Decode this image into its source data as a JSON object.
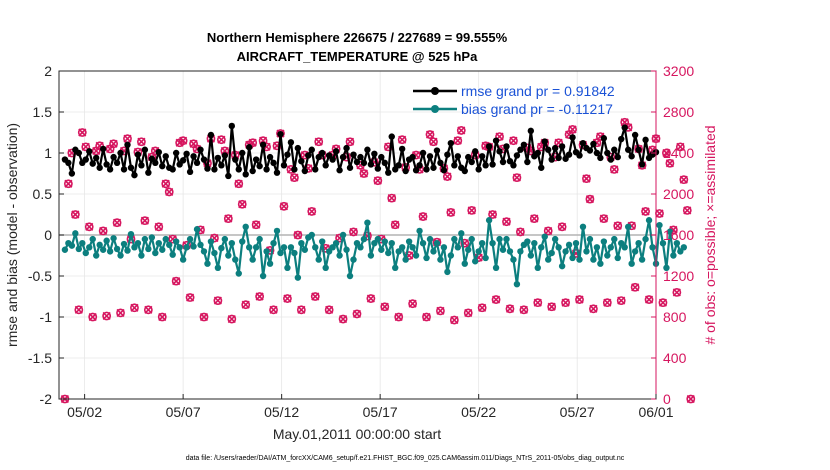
{
  "chart_data": {
    "type": "line",
    "title_lines": [
      "Northern Hemisphere 226675 / 227689 = 99.555%",
      "AIRCRAFT_TEMPERATURE @ 525 hPa"
    ],
    "xlabel": "May.01,2011 00:00:00 start",
    "ylabel_left": "rmse and bias (model - observation)",
    "ylabel_right": "# of obs: o=possible; ×=assimilated",
    "footnote": "data file: /Users/raeder/DAI/ATM_forcXX/CAM6_setup/f.e21.FHIST_BGC.f09_025.CAM6assim.011/Diags_NTrS_2011-05/obs_diag_output.nc",
    "x_day_range": [
      0.7,
      31.0
    ],
    "x_ticks": [
      {
        "day": 2,
        "label": "05/02"
      },
      {
        "day": 7,
        "label": "05/07"
      },
      {
        "day": 12,
        "label": "05/12"
      },
      {
        "day": 17,
        "label": "05/17"
      },
      {
        "day": 22,
        "label": "05/22"
      },
      {
        "day": 27,
        "label": "05/27"
      },
      {
        "day": 31,
        "label": "06/01"
      }
    ],
    "ylim_left": [
      -2,
      2
    ],
    "yticks_left": [
      "-2",
      "-1.5",
      "-1",
      "-0.5",
      "0",
      "0.5",
      "1",
      "1.5",
      "2"
    ],
    "ylim_right": [
      0,
      3200
    ],
    "yticks_right": [
      "0",
      "400",
      "800",
      "1200",
      "1600",
      "2000",
      "2400",
      "2800",
      "3200"
    ],
    "legend": [
      {
        "label": "rmse grand pr = 0.91842",
        "color": "#000000"
      },
      {
        "label": "bias grand pr = -0.11217",
        "color": "#0c7f7f"
      }
    ],
    "colors": {
      "rmse": "#000000",
      "bias": "#0c7f7f",
      "obs": "#d6165f",
      "text_blue": "#1a52d6",
      "zero_line": "#b3b3b3"
    },
    "series": {
      "rmse": [
        0.92,
        0.88,
        0.75,
        1.04,
        1.0,
        0.88,
        0.92,
        1.02,
        0.87,
        0.94,
        0.82,
        1.05,
        0.86,
        0.8,
        0.95,
        0.88,
        1.0,
        0.8,
        1.1,
        0.82,
        0.73,
        0.98,
        0.85,
        1.04,
        0.76,
        0.93,
        0.88,
        1.01,
        0.84,
        0.96,
        0.82,
        0.8,
        1.0,
        0.86,
        0.91,
        0.99,
        0.77,
        0.96,
        0.88,
        1.04,
        0.92,
        0.81,
        1.22,
        0.8,
        0.94,
        0.85,
        0.97,
        0.72,
        1.33,
        0.92,
        0.8,
        1.0,
        0.74,
        1.07,
        0.78,
        0.92,
        0.84,
        1.1,
        0.8,
        0.95,
        0.88,
        0.76,
        1.23,
        0.85,
        0.98,
        1.13,
        0.8,
        1.06,
        0.9,
        0.78,
        0.97,
        1.04,
        0.8,
        0.95,
        1.0,
        0.85,
        0.97,
        0.92,
        1.02,
        0.79,
        0.95,
        1.06,
        0.82,
        0.98,
        0.89,
        0.95,
        0.88,
        1.04,
        0.86,
        0.99,
        0.81,
        0.95,
        0.88,
        0.76,
        1.2,
        0.8,
        0.85,
        1.05,
        0.78,
        0.92,
        0.95,
        0.79,
        0.85,
        1.0,
        0.8,
        0.96,
        0.82,
        1.03,
        0.88,
        0.79,
        0.98,
        1.12,
        0.85,
        0.96,
        0.82,
        0.78,
        0.95,
        0.89,
        1.02,
        0.8,
        0.96,
        0.85,
        1.08,
        0.86,
        1.15,
        1.02,
        0.89,
        1.08,
        0.9,
        0.85,
        0.97,
        1.04,
        1.1,
        0.89,
        1.27,
        0.96,
        1.0,
        0.82,
        1.14,
        1.04,
        0.92,
        1.06,
        0.94,
        1.08,
        0.93,
        0.98,
        1.19,
        1.01,
        0.97,
        1.12,
        1.06,
        1.03,
        1.11,
        1.0,
        0.94,
        1.18,
        1.0,
        0.92,
        1.04,
        0.95,
        1.17,
        1.31,
        1.04,
        0.96,
        1.22,
        1.04,
        0.86,
        1.16,
        0.94,
        0.98,
        1.01
      ],
      "bias": [
        -0.18,
        -0.1,
        -0.13,
        0.02,
        -0.17,
        -0.1,
        -0.22,
        -0.15,
        -0.05,
        -0.25,
        -0.12,
        -0.18,
        -0.07,
        -0.2,
        -0.04,
        -0.17,
        -0.25,
        -0.11,
        -0.19,
        0.01,
        -0.15,
        -0.1,
        -0.25,
        -0.05,
        -0.17,
        -0.03,
        -0.22,
        -0.1,
        -0.18,
        -0.05,
        -0.12,
        -0.24,
        -0.08,
        -0.15,
        -0.3,
        -0.15,
        -0.05,
        -0.14,
        0.07,
        -0.12,
        -0.2,
        -0.35,
        -0.08,
        -0.22,
        -0.4,
        -0.16,
        -0.05,
        -0.25,
        -0.1,
        -0.3,
        -0.47,
        -0.08,
        0.1,
        -0.15,
        -0.3,
        -0.15,
        -0.05,
        -0.5,
        -0.2,
        -0.35,
        -0.1,
        0.05,
        -0.22,
        -0.15,
        -0.4,
        -0.15,
        -0.22,
        -0.52,
        -0.1,
        -0.18,
        -0.03,
        0.0,
        -0.15,
        -0.3,
        -0.08,
        -0.4,
        -0.2,
        -0.15,
        -0.1,
        -0.25,
        0.0,
        -0.18,
        -0.5,
        -0.3,
        -0.1,
        -0.15,
        -0.05,
        0.15,
        -0.25,
        -0.1,
        -0.05,
        -0.18,
        -0.08,
        -0.22,
        -0.1,
        -0.4,
        -0.2,
        -0.15,
        -0.3,
        -0.08,
        -0.15,
        -0.25,
        0.05,
        -0.1,
        -0.28,
        -0.05,
        -0.2,
        -0.1,
        -0.3,
        -0.15,
        -0.45,
        -0.25,
        -0.05,
        -0.15,
        0.02,
        -0.35,
        -0.18,
        -0.05,
        -0.32,
        -0.2,
        -0.1,
        -0.28,
        0.18,
        -0.1,
        -0.4,
        -0.05,
        -0.18,
        -0.05,
        -0.2,
        -0.3,
        -0.6,
        -0.2,
        -0.12,
        -0.08,
        -0.25,
        -0.1,
        -0.4,
        -0.15,
        -0.02,
        -0.3,
        -0.22,
        -0.05,
        -0.15,
        -0.38,
        -0.2,
        -0.12,
        -0.28,
        -0.1,
        -0.3,
        0.1,
        -0.2,
        -0.05,
        -0.3,
        -0.15,
        -0.35,
        -0.08,
        -0.25,
        -0.15,
        -0.05,
        -0.28,
        -0.1,
        -0.15,
        0.1,
        -0.35,
        -0.2,
        -0.1,
        -0.3,
        -0.05,
        0.18,
        -0.15,
        -0.35,
        0.12,
        -0.1,
        -0.4,
        0.04,
        -0.25,
        -0.1,
        -0.2,
        -0.15
      ],
      "obs_count": [
        0,
        2100,
        2400,
        1800,
        870,
        2600,
        2460,
        1680,
        800,
        2420,
        2470,
        1640,
        810,
        2440,
        2490,
        1720,
        840,
        2420,
        2540,
        1560,
        890,
        2410,
        2510,
        1740,
        870,
        2360,
        2420,
        1680,
        800,
        2100,
        2020,
        1560,
        1150,
        2500,
        2520,
        1500,
        990,
        2490,
        2440,
        1650,
        800,
        2300,
        2540,
        1570,
        960,
        2530,
        2420,
        1760,
        780,
        2380,
        2100,
        1900,
        920,
        2480,
        2500,
        1700,
        1000,
        2520,
        2460,
        1450,
        870,
        2470,
        2590,
        1880,
        980,
        2240,
        2160,
        1600,
        870,
        2380,
        2250,
        1830,
        1000,
        2510,
        2380,
        1470,
        870,
        2380,
        2440,
        1570,
        780,
        2360,
        2510,
        1630,
        830,
        2280,
        2200,
        1590,
        980,
        2310,
        2130,
        1560,
        900,
        2460,
        1960,
        1700,
        800,
        2530,
        2260,
        1400,
        930,
        2380,
        2240,
        1780,
        800,
        2580,
        2510,
        1530,
        860,
        2250,
        2170,
        1820,
        770,
        2520,
        2620,
        1520,
        840,
        1840,
        2380,
        1380,
        890,
        2470,
        2460,
        1800,
        970,
        2560,
        2440,
        1730,
        880,
        2520,
        2160,
        1630,
        870,
        2450,
        2420,
        1760,
        940,
        2460,
        2500,
        1640,
        900,
        2360,
        2500,
        1680,
        940,
        2580,
        2630,
        1420,
        970,
        2480,
        2150,
        1950,
        880,
        2500,
        2560,
        1760,
        940,
        2360,
        2240,
        1690,
        960,
        2700,
        2650,
        1690,
        1090,
        2440,
        2280,
        1830,
        970,
        2430,
        2540,
        1810,
        940,
        2400,
        2300,
        1650,
        1040,
        2460,
        2140,
        1840,
        0
      ]
    }
  }
}
